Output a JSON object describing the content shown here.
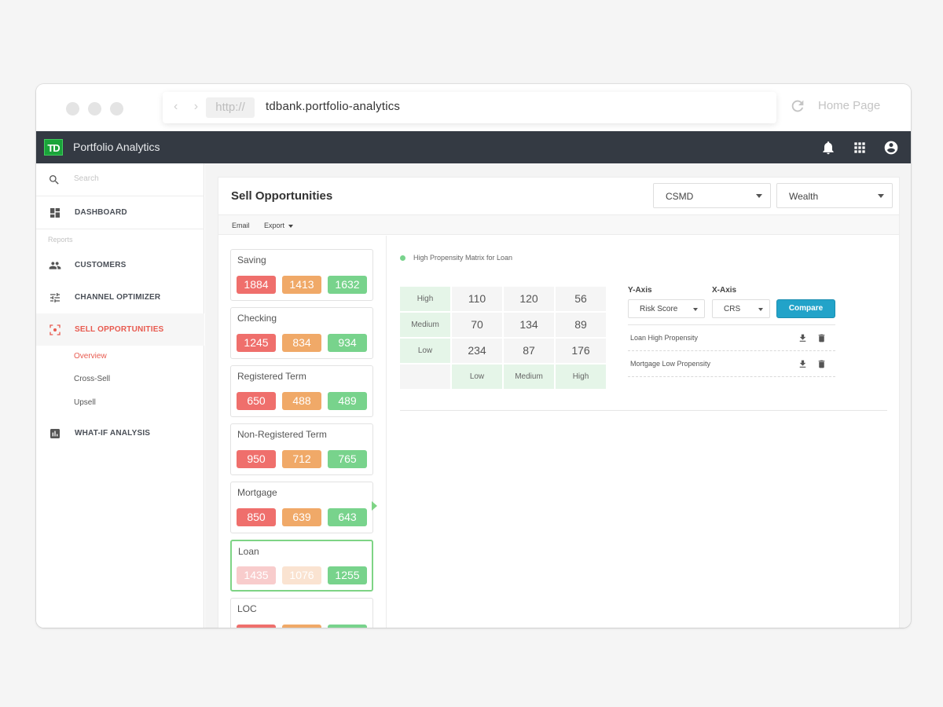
{
  "browser": {
    "protocol": "http://",
    "url": "tdbank.portfolio-analytics",
    "home_label": "Home Page"
  },
  "app": {
    "logo_text": "TD",
    "title": "Portfolio Analytics"
  },
  "sidebar": {
    "search_placeholder": "Search",
    "dashboard": "DASHBOARD",
    "section_label": "Reports",
    "items": [
      {
        "label": "CUSTOMERS",
        "icon": "people-icon"
      },
      {
        "label": "CHANNEL OPTIMIZER",
        "icon": "sliders-icon"
      },
      {
        "label": "SELL OPPORTUNITIES",
        "icon": "target-icon",
        "active": true
      },
      {
        "label": "WHAT-IF ANALYSIS",
        "icon": "bar-chart-icon"
      }
    ],
    "sub_items": [
      {
        "label": "Overview",
        "active": true
      },
      {
        "label": "Cross-Sell"
      },
      {
        "label": "Upsell"
      }
    ]
  },
  "main": {
    "title": "Sell Opportunities",
    "filters": {
      "first": "CSMD",
      "second": "Wealth"
    },
    "toolbar": {
      "email": "Email",
      "export": "Export"
    },
    "products": [
      {
        "name": "Saving",
        "values": [
          "1884",
          "1413",
          "1632"
        ]
      },
      {
        "name": "Checking",
        "values": [
          "1245",
          "834",
          "934"
        ]
      },
      {
        "name": "Registered Term",
        "values": [
          "650",
          "488",
          "489"
        ]
      },
      {
        "name": "Non-Registered Term",
        "values": [
          "950",
          "712",
          "765"
        ]
      },
      {
        "name": "Mortgage",
        "values": [
          "850",
          "639",
          "643"
        ]
      },
      {
        "name": "Loan",
        "values": [
          "1435",
          "1076",
          "1255"
        ],
        "selected": true
      },
      {
        "name": "LOC",
        "values": [
          "",
          "",
          ""
        ]
      }
    ],
    "matrix": {
      "legend": "High Propensity Matrix for Loan",
      "row_labels": [
        "High",
        "Medium",
        "Low"
      ],
      "col_labels": [
        "Low",
        "Medium",
        "High"
      ],
      "values": [
        [
          "110",
          "120",
          "56"
        ],
        [
          "70",
          "134",
          "89"
        ],
        [
          "234",
          "87",
          "176"
        ]
      ]
    },
    "controls": {
      "y_axis_label": "Y-Axis",
      "x_axis_label": "X-Axis",
      "y_axis_value": "Risk Score",
      "x_axis_value": "CRS",
      "compare": "Compare"
    },
    "saved": [
      {
        "label": "Loan High Propensity"
      },
      {
        "label": "Mortgage Low Propensity"
      }
    ]
  },
  "colors": {
    "accent": "#e85a4f",
    "header": "#343a43",
    "brand_green": "#1aa33a",
    "compare_blue": "#22a3c9",
    "low_red": "#ef6f6c",
    "mid_orange": "#f0a968",
    "high_green": "#78d38c"
  }
}
